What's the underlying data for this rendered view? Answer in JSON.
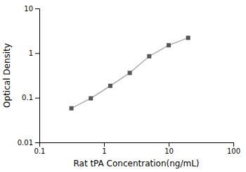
{
  "chart_data": {
    "type": "line",
    "x": [
      0.313,
      0.625,
      1.25,
      2.5,
      5.0,
      10.0,
      20.0
    ],
    "values": [
      0.058,
      0.097,
      0.185,
      0.36,
      0.85,
      1.5,
      2.2
    ],
    "xlabel": "Rat tPA Concentration(ng/mL)",
    "ylabel": "Optical Density",
    "xlim": [
      0.1,
      100
    ],
    "ylim": [
      0.01,
      10
    ],
    "xticks": [
      0.1,
      1,
      10,
      100
    ],
    "yticks": [
      0.01,
      0.1,
      1,
      10
    ],
    "log": true,
    "grid": false,
    "color": "#b0b0b0",
    "marker": "square"
  }
}
